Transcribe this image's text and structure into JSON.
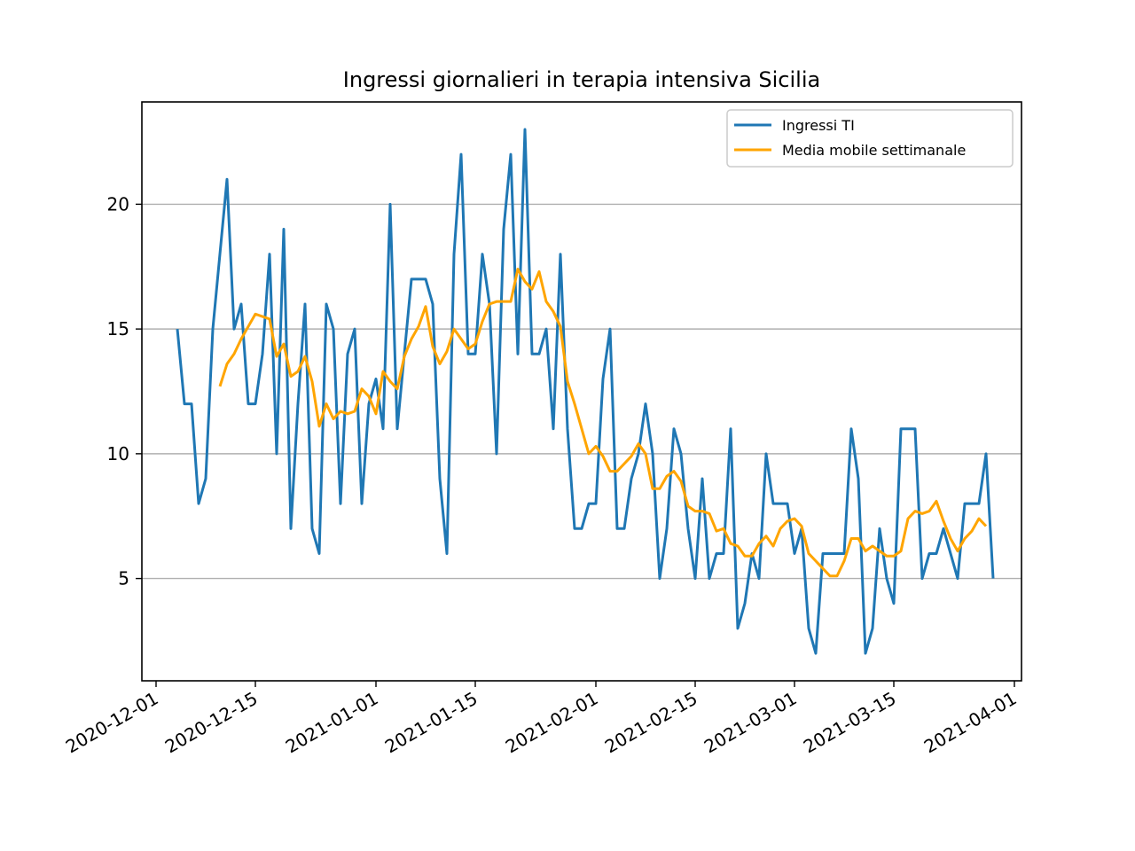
{
  "chart_data": {
    "type": "line",
    "title": "Ingressi giornalieri in terapia intensiva Sicilia",
    "xlabel": "",
    "ylabel": "",
    "x_axis": {
      "type": "date",
      "range": [
        "2020-11-29",
        "2021-04-02"
      ],
      "ticks": [
        "2020-12-01",
        "2020-12-15",
        "2021-01-01",
        "2021-01-15",
        "2021-02-01",
        "2021-02-15",
        "2021-03-01",
        "2021-03-15",
        "2021-04-01"
      ]
    },
    "y_axis": {
      "range": [
        0.9,
        24.1
      ],
      "ticks": [
        5,
        10,
        15,
        20
      ]
    },
    "grid": "horizontal",
    "legend_position": "top-right",
    "series": [
      {
        "name": "Ingressi TI",
        "color": "#1f77b4",
        "start_date": "2020-12-04",
        "values": [
          15,
          12,
          12,
          8,
          9,
          15,
          18,
          21,
          15,
          16,
          12,
          12,
          14,
          18,
          10,
          19,
          7,
          12,
          16,
          7,
          6,
          16,
          15,
          8,
          14,
          15,
          8,
          12,
          13,
          11,
          20,
          11,
          14,
          17,
          17,
          17,
          16,
          9,
          6,
          18,
          22,
          14,
          14,
          18,
          16,
          10,
          19,
          22,
          14,
          23,
          14,
          14,
          15,
          11,
          18,
          11,
          7,
          7,
          8,
          8,
          13,
          15,
          7,
          7,
          9,
          10,
          12,
          10,
          5,
          7,
          11,
          10,
          7,
          5,
          9,
          5,
          6,
          6,
          11,
          3,
          4,
          6,
          5,
          10,
          8,
          8,
          8,
          6,
          7,
          3,
          2,
          6,
          6,
          6,
          6,
          11,
          9,
          2,
          3,
          7,
          5,
          4,
          11,
          11,
          11,
          5,
          6,
          6,
          7,
          6,
          5,
          8,
          8,
          8,
          10,
          5
        ]
      },
      {
        "name": "Media mobile settimanale",
        "color": "#ffa500",
        "start_date": "2020-12-10",
        "values": [
          12.7,
          13.6,
          14.0,
          14.6,
          15.1,
          15.6,
          15.5,
          15.4,
          13.9,
          14.4,
          13.1,
          13.3,
          13.9,
          12.9,
          11.1,
          12.0,
          11.4,
          11.7,
          11.6,
          11.7,
          12.6,
          12.3,
          11.6,
          13.3,
          12.9,
          12.6,
          13.9,
          14.6,
          15.1,
          15.9,
          14.3,
          13.6,
          14.1,
          15.0,
          14.6,
          14.2,
          14.4,
          15.3,
          16.0,
          16.1,
          16.1,
          16.1,
          17.4,
          16.9,
          16.6,
          17.3,
          16.1,
          15.7,
          15.1,
          12.9,
          12.0,
          11.0,
          10.0,
          10.3,
          9.9,
          9.3,
          9.3,
          9.6,
          9.9,
          10.4,
          10.0,
          8.6,
          8.6,
          9.1,
          9.3,
          8.9,
          7.9,
          7.7,
          7.7,
          7.6,
          6.9,
          7.0,
          6.4,
          6.3,
          5.9,
          5.9,
          6.4,
          6.7,
          6.3,
          7.0,
          7.3,
          7.4,
          7.1,
          6.0,
          5.7,
          5.4,
          5.1,
          5.1,
          5.7,
          6.6,
          6.6,
          6.1,
          6.3,
          6.1,
          5.9,
          5.9,
          6.1,
          7.4,
          7.7,
          7.6,
          7.7,
          8.1,
          7.3,
          6.6,
          6.1,
          6.6,
          6.9,
          7.4,
          7.1
        ]
      }
    ]
  }
}
